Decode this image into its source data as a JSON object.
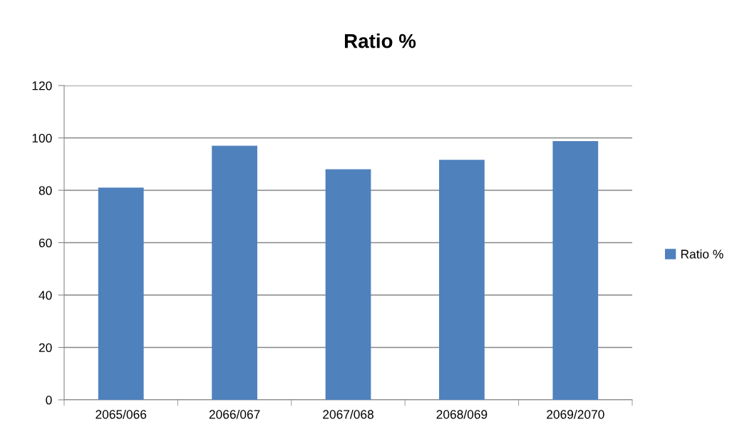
{
  "chart_data": {
    "type": "bar",
    "title": "Ratio %",
    "categories": [
      "2065/066",
      "2066/067",
      "2067/068",
      "2068/069",
      "2069/2070"
    ],
    "series": [
      {
        "name": "Ratio %",
        "color": "#4f81bd",
        "values": [
          81,
          97,
          88,
          91.6,
          98.8
        ]
      }
    ],
    "ylim": [
      0,
      120
    ],
    "yticks": [
      0,
      20,
      40,
      60,
      80,
      100,
      120
    ],
    "grid": "y",
    "legend": "right"
  }
}
